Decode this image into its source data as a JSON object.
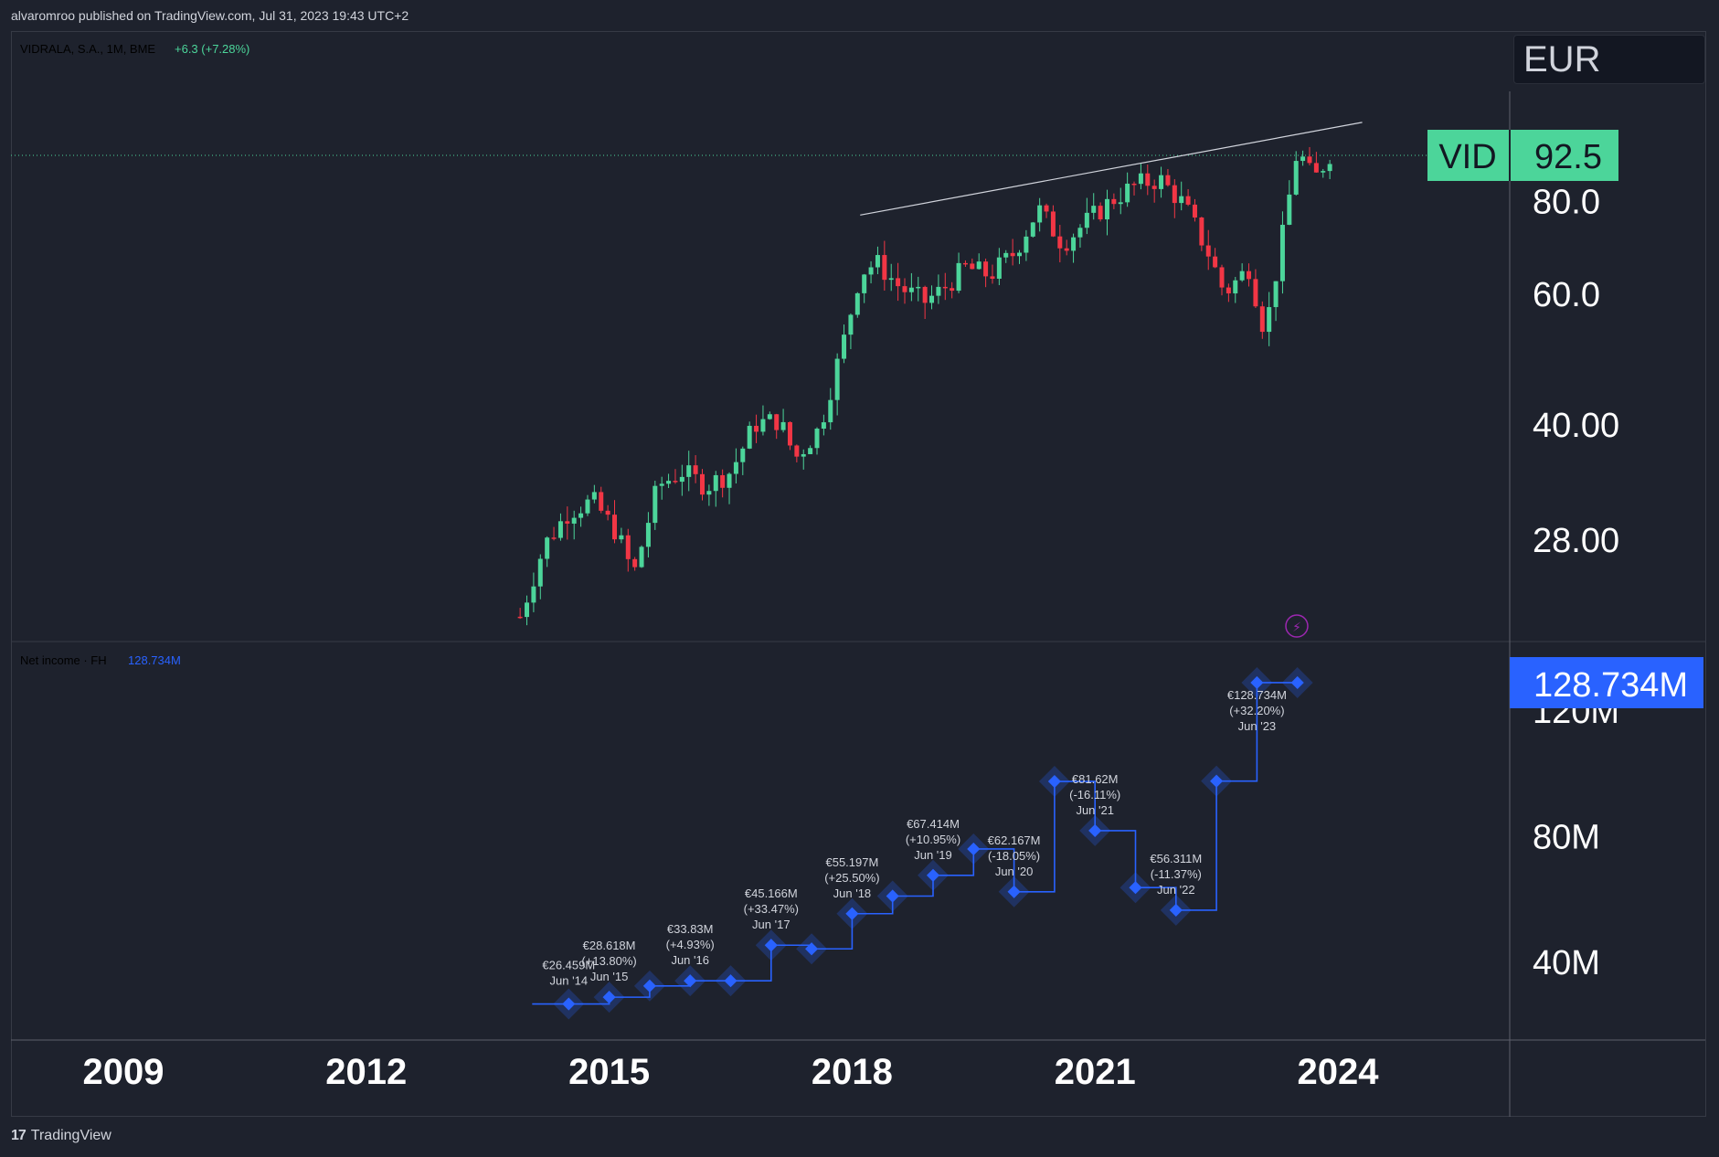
{
  "header": {
    "published": "alvaromroo published on TradingView.com, Jul 31, 2023 19:43 UTC+2"
  },
  "footer": {
    "brand": "TradingView"
  },
  "colors": {
    "background": "#1e222d",
    "up": "#26a69a",
    "up_candle": "#4cd59a",
    "down": "#f23645",
    "net_income": "#2962ff",
    "label_bg": "#4cd59a"
  },
  "chart_data": [
    {
      "type": "candlestick",
      "title": "VIDRALA, S.A., 1M, BME",
      "change": "+6.3 (+7.28%)",
      "currency": "EUR",
      "symbol_label": "VID",
      "last_price": "92.5",
      "scale": "log",
      "y_ticks": [
        "80.0",
        "60.0",
        "40.00",
        "28.00"
      ],
      "y_tick_values": [
        80,
        60,
        40,
        28
      ],
      "x_ticks": [
        "2009",
        "2012",
        "2015",
        "2018",
        "2021",
        "2024"
      ],
      "x_tick_values": [
        2009,
        2012,
        2015,
        2018,
        2021,
        2024
      ],
      "trendline": {
        "x": [
          2018.1,
          2024.3
        ],
        "y": [
          76.5,
          102
        ]
      },
      "close_path": [
        [
          2013.9,
          22.0
        ],
        [
          2014.2,
          27.5
        ],
        [
          2014.5,
          30.5
        ],
        [
          2014.8,
          31.5
        ],
        [
          2015.1,
          28.5
        ],
        [
          2015.3,
          25.0
        ],
        [
          2015.6,
          33.0
        ],
        [
          2015.9,
          34.5
        ],
        [
          2016.2,
          33.0
        ],
        [
          2016.5,
          34.5
        ],
        [
          2016.8,
          40.0
        ],
        [
          2017.1,
          40.5
        ],
        [
          2017.3,
          36.0
        ],
        [
          2017.6,
          39.5
        ],
        [
          2017.9,
          52.0
        ],
        [
          2018.1,
          64.0
        ],
        [
          2018.3,
          66.0
        ],
        [
          2018.6,
          61.0
        ],
        [
          2018.9,
          58.5
        ],
        [
          2019.1,
          60.5
        ],
        [
          2019.4,
          65.0
        ],
        [
          2019.7,
          63.5
        ],
        [
          2020.0,
          68.0
        ],
        [
          2020.3,
          78.0
        ],
        [
          2020.6,
          70.0
        ],
        [
          2020.9,
          75.0
        ],
        [
          2021.2,
          80.0
        ],
        [
          2021.5,
          84.0
        ],
        [
          2021.8,
          85.5
        ],
        [
          2022.1,
          79.0
        ],
        [
          2022.4,
          68.0
        ],
        [
          2022.6,
          60.0
        ],
        [
          2022.9,
          65.0
        ],
        [
          2023.1,
          53.0
        ],
        [
          2023.3,
          70.0
        ],
        [
          2023.5,
          94.0
        ],
        [
          2023.7,
          85.0
        ],
        [
          2023.9,
          92.5
        ]
      ]
    },
    {
      "type": "line",
      "title": "Net income · FH",
      "last_value": "128.734M",
      "y_ticks": [
        "120M",
        "80M",
        "40M"
      ],
      "y_tick_values": [
        120,
        80,
        40
      ],
      "series": [
        {
          "name": "Net income",
          "x": [
            2014.5,
            2015.0,
            2015.5,
            2016.0,
            2016.5,
            2017.0,
            2017.5,
            2018.0,
            2018.5,
            2019.0,
            2019.5,
            2020.0,
            2020.5,
            2021.0,
            2021.5,
            2022.0,
            2022.5,
            2023.0,
            2023.5
          ],
          "values": [
            26.459,
            28.618,
            32.2,
            33.83,
            33.83,
            45.166,
            44.0,
            55.197,
            60.8,
            67.414,
            75.8,
            62.167,
            97.3,
            81.62,
            63.5,
            56.311,
            97.4,
            128.734,
            128.734
          ]
        }
      ],
      "annotations": [
        {
          "value": "€26.459M",
          "change": "",
          "date": "Jun '14",
          "x": 2014.5,
          "y": 26.459
        },
        {
          "value": "€28.618M",
          "change": "(+13.80%)",
          "date": "Jun '15",
          "x": 2015.0,
          "y": 28.618
        },
        {
          "value": "€33.83M",
          "change": "(+4.93%)",
          "date": "Jun '16",
          "x": 2016.0,
          "y": 33.83
        },
        {
          "value": "€45.166M",
          "change": "(+33.47%)",
          "date": "Jun '17",
          "x": 2017.0,
          "y": 45.166
        },
        {
          "value": "€55.197M",
          "change": "(+25.50%)",
          "date": "Jun '18",
          "x": 2018.0,
          "y": 55.197
        },
        {
          "value": "€67.414M",
          "change": "(+10.95%)",
          "date": "Jun '19",
          "x": 2019.0,
          "y": 67.414
        },
        {
          "value": "€62.167M",
          "change": "(-18.05%)",
          "date": "Jun '20",
          "x": 2020.0,
          "y": 62.167
        },
        {
          "value": "€81.62M",
          "change": "(-16.11%)",
          "date": "Jun '21",
          "x": 2021.0,
          "y": 81.62
        },
        {
          "value": "€56.311M",
          "change": "(-11.37%)",
          "date": "Jun '22",
          "x": 2022.0,
          "y": 56.311
        },
        {
          "value": "€128.734M",
          "change": "(+32.20%)",
          "date": "Jun '23",
          "x": 2023.0,
          "y": 128.734
        }
      ]
    }
  ]
}
